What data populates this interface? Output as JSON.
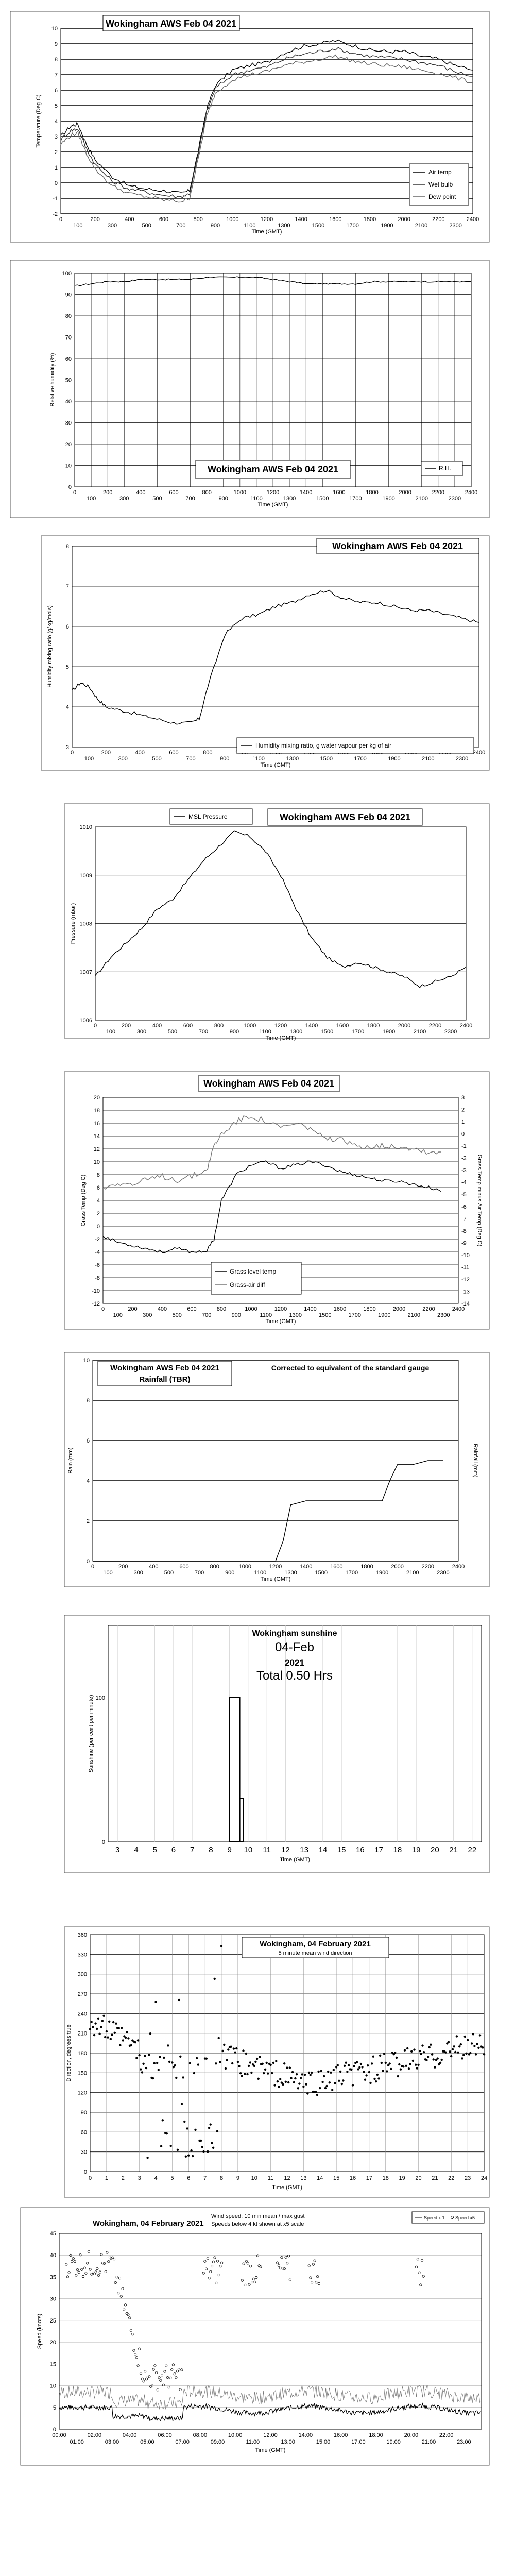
{
  "charts": {
    "temperature": {
      "title": "Wokingham AWS Feb 04 2021",
      "xlabel": "Time (GMT)",
      "ylabel": "Temperature (Deg C)",
      "legend": [
        "Air temp",
        "Wet bulb",
        "Dew point"
      ]
    },
    "humidity": {
      "title": "Wokingham AWS Feb 04 2021",
      "xlabel": "Time (GMT)",
      "ylabel": "Relative humidity (%)",
      "legend": [
        "R.H."
      ]
    },
    "mixing": {
      "title": "Wokingham AWS Feb 04 2021",
      "xlabel": "Time (GMT)",
      "ylabel": "Humidity mixing ratio (g/kg/mols)",
      "legend": [
        "Humidity mixing ratio, g water vapour per kg of air"
      ]
    },
    "pressure": {
      "title": "Wokingham AWS Feb 04 2021",
      "xlabel": "Time (GMT)",
      "ylabel": "Pressure (mbar)",
      "legend": [
        "MSL Pressure"
      ]
    },
    "grass": {
      "title": "Wokingham AWS Feb 04 2021",
      "xlabel": "Time (GMT)",
      "ylabel": "Grass Temp (Deg C)",
      "ylabel2": "Grass Temp minus Air Temp (Deg C)",
      "legend": [
        "Grass level temp",
        "Grass-air diff"
      ]
    },
    "rain": {
      "title": "Wokingham AWS Feb 04 2021",
      "subtitle": "Rainfall (TBR)",
      "note": "Corrected to equivalent of the standard gauge",
      "xlabel": "Time (GMT)",
      "ylabel": "Rain (mm)",
      "ylabel2": "Rainfall (mm)"
    },
    "sunshine": {
      "title": "Wokingham sunshine",
      "date": "04-Feb",
      "year": "2021",
      "total": "Total 0.50 Hrs",
      "xlabel": "Time (GMT)",
      "ylabel": "Sunshine (per cent per minute)"
    },
    "wind_dir": {
      "title": "Wokingham,  04 February 2021",
      "subtitle": "5 minute mean wind direction",
      "xlabel": "Time (GMT)",
      "ylabel": "Direction, degrees true"
    },
    "wind_speed": {
      "title": "Wokingham,  04 February 2021",
      "subtitle1": "Wind speed: 10 min mean / max gust",
      "subtitle2": "Speeds below 4 kt shown at x5 scale",
      "xlabel": "Time (GMT)",
      "ylabel": "Speed (knots)",
      "legend": [
        "Speed x 1",
        "Speed x5"
      ]
    }
  },
  "chart_data": [
    {
      "id": "temperature",
      "type": "line",
      "title": "Wokingham AWS Feb 04 2021",
      "xlabel": "Time (GMT)",
      "ylabel": "Temperature (Deg C)",
      "xlim": [
        0,
        2400
      ],
      "ylim": [
        -2,
        10
      ],
      "series": [
        {
          "name": "Air temp",
          "color": "#000000",
          "x": [
            0,
            60,
            100,
            150,
            200,
            300,
            400,
            500,
            600,
            700,
            750,
            800,
            850,
            900,
            1000,
            1100,
            1200,
            1300,
            1400,
            1500,
            1600,
            1700,
            1800,
            1900,
            2000,
            2100,
            2200,
            2300,
            2400
          ],
          "y": [
            3.0,
            3.7,
            3.8,
            2.5,
            1.5,
            0.4,
            -0.2,
            -0.4,
            -0.5,
            -0.7,
            -0.5,
            2.0,
            4.8,
            6.3,
            7.3,
            7.6,
            7.8,
            8.4,
            8.8,
            9.0,
            9.2,
            8.9,
            8.6,
            8.5,
            8.5,
            8.2,
            8.0,
            7.6,
            7.3
          ]
        },
        {
          "name": "Wet bulb",
          "color": "#333333",
          "x": [
            0,
            60,
            100,
            150,
            200,
            300,
            400,
            500,
            600,
            700,
            750,
            800,
            850,
            900,
            1000,
            1100,
            1200,
            1300,
            1400,
            1500,
            1600,
            1700,
            1800,
            1900,
            2000,
            2100,
            2200,
            2300,
            2400
          ],
          "y": [
            2.8,
            3.4,
            3.5,
            2.2,
            1.2,
            0.1,
            -0.4,
            -0.6,
            -0.8,
            -0.9,
            -0.7,
            1.8,
            4.6,
            6.1,
            7.0,
            7.3,
            7.5,
            8.0,
            8.3,
            8.5,
            8.7,
            8.4,
            8.2,
            8.1,
            8.0,
            7.8,
            7.6,
            7.2,
            6.9
          ]
        },
        {
          "name": "Dew point",
          "color": "#666666",
          "x": [
            0,
            60,
            100,
            150,
            200,
            300,
            400,
            500,
            600,
            700,
            750,
            800,
            850,
            900,
            1000,
            1100,
            1200,
            1300,
            1400,
            1500,
            1600,
            1700,
            1800,
            1900,
            2000,
            2100,
            2200,
            2300,
            2400
          ],
          "y": [
            2.5,
            3.1,
            3.2,
            1.9,
            0.9,
            -0.2,
            -0.7,
            -0.9,
            -1.1,
            -1.2,
            -1.0,
            1.5,
            4.3,
            5.8,
            6.7,
            7.0,
            7.2,
            7.6,
            7.8,
            8.0,
            8.2,
            7.9,
            7.7,
            7.6,
            7.5,
            7.3,
            7.1,
            6.8,
            6.5
          ]
        }
      ]
    },
    {
      "id": "humidity",
      "type": "line",
      "title": "Wokingham AWS Feb 04 2021",
      "xlabel": "Time (GMT)",
      "ylabel": "Relative humidity (%)",
      "xlim": [
        0,
        2400
      ],
      "ylim": [
        0,
        100
      ],
      "series": [
        {
          "name": "R.H.",
          "color": "#000000",
          "x": [
            0,
            100,
            200,
            300,
            400,
            500,
            600,
            700,
            800,
            900,
            1000,
            1100,
            1200,
            1300,
            1400,
            1500,
            1600,
            1700,
            1800,
            1900,
            2000,
            2100,
            2200,
            2300,
            2400
          ],
          "y": [
            94,
            95,
            96,
            96,
            97,
            97,
            97,
            97,
            98,
            98,
            98,
            98,
            97,
            96,
            95,
            95,
            95,
            95,
            96,
            96,
            96,
            96,
            96,
            96,
            96
          ]
        }
      ]
    },
    {
      "id": "mixing",
      "type": "line",
      "title": "Wokingham AWS Feb 04 2021",
      "xlabel": "Time (GMT)",
      "ylabel": "Humidity mixing ratio (g/kg/mols)",
      "xlim": [
        0,
        2400
      ],
      "ylim": [
        3,
        8
      ],
      "series": [
        {
          "name": "Humidity mixing ratio, g water vapour per kg of air",
          "color": "#000000",
          "x": [
            0,
            50,
            100,
            150,
            200,
            300,
            400,
            500,
            600,
            700,
            750,
            800,
            900,
            1000,
            1100,
            1200,
            1300,
            1400,
            1500,
            1600,
            1700,
            1800,
            1900,
            2000,
            2100,
            2200,
            2300,
            2400
          ],
          "y": [
            4.4,
            4.6,
            4.5,
            4.2,
            4.0,
            3.9,
            3.8,
            3.7,
            3.6,
            3.6,
            3.7,
            4.5,
            5.8,
            6.2,
            6.3,
            6.5,
            6.6,
            6.8,
            6.9,
            6.7,
            6.6,
            6.6,
            6.5,
            6.4,
            6.4,
            6.3,
            6.2,
            6.1
          ]
        }
      ]
    },
    {
      "id": "pressure",
      "type": "line",
      "title": "Wokingham AWS Feb 04 2021",
      "xlabel": "Time (GMT)",
      "ylabel": "Pressure (mbar)",
      "xlim": [
        0,
        2400
      ],
      "ylim": [
        1006,
        1010
      ],
      "series": [
        {
          "name": "MSL Pressure",
          "color": "#000000",
          "x": [
            0,
            100,
            200,
            300,
            400,
            500,
            600,
            700,
            800,
            900,
            1000,
            1100,
            1200,
            1300,
            1400,
            1500,
            1600,
            1700,
            1800,
            1900,
            2000,
            2100,
            2200,
            2300,
            2400
          ],
          "y": [
            1006.9,
            1007.3,
            1007.6,
            1007.9,
            1008.3,
            1008.5,
            1008.9,
            1009.3,
            1009.6,
            1009.9,
            1009.8,
            1009.5,
            1009.0,
            1008.3,
            1007.7,
            1007.3,
            1007.1,
            1007.2,
            1007.1,
            1007.0,
            1006.9,
            1006.7,
            1006.8,
            1006.9,
            1007.1
          ]
        }
      ]
    },
    {
      "id": "grass",
      "type": "line",
      "title": "Wokingham AWS Feb 04 2021",
      "xlabel": "Time (GMT)",
      "ylabel": "Grass Temp (Deg C)",
      "xlim": [
        0,
        2400
      ],
      "ylim": [
        -12,
        20
      ],
      "ylim2": [
        -14,
        3
      ],
      "series": [
        {
          "name": "Grass level temp",
          "color": "#000000",
          "axis": "left",
          "x": [
            0,
            100,
            200,
            300,
            400,
            500,
            600,
            700,
            750,
            800,
            900,
            1000,
            1100,
            1200,
            1300,
            1400,
            1500,
            1600,
            1700,
            1800,
            1900,
            2000,
            2100,
            2200,
            2300
          ],
          "y": [
            -1.5,
            -2.5,
            -3.0,
            -3.5,
            -4.0,
            -3.5,
            -4.0,
            -3.8,
            -2.0,
            4.0,
            8.0,
            9.5,
            10.0,
            9.0,
            9.5,
            10.0,
            9.5,
            8.5,
            8.0,
            7.5,
            7.0,
            7.0,
            6.5,
            6.0,
            5.5
          ]
        },
        {
          "name": "Grass-air diff",
          "color": "#777777",
          "axis": "right",
          "x": [
            0,
            100,
            200,
            300,
            400,
            500,
            600,
            700,
            750,
            800,
            900,
            1000,
            1100,
            1200,
            1300,
            1400,
            1500,
            1600,
            1700,
            1800,
            1900,
            2000,
            2100,
            2200,
            2300
          ],
          "y": [
            -4.5,
            -4.0,
            -4.2,
            -3.8,
            -3.5,
            -3.8,
            -3.5,
            -3.0,
            -1.0,
            0.0,
            1.0,
            1.5,
            1.0,
            0.5,
            0.8,
            0.5,
            -0.5,
            -0.5,
            -1.0,
            -1.0,
            -1.0,
            -1.0,
            -1.2,
            -1.5,
            -1.5
          ]
        }
      ]
    },
    {
      "id": "rain",
      "type": "line",
      "title": "Wokingham AWS Feb 04 2021",
      "xlabel": "Time (GMT)",
      "ylabel": "Rain (mm)",
      "xlim": [
        0,
        2400
      ],
      "ylim": [
        0,
        10
      ],
      "series": [
        {
          "name": "Rainfall (TBR)",
          "color": "#000000",
          "x": [
            0,
            1200,
            1250,
            1300,
            1350,
            1400,
            1500,
            1600,
            1700,
            1800,
            1900,
            1950,
            2000,
            2100,
            2200,
            2300
          ],
          "y": [
            0,
            0,
            1.0,
            2.8,
            2.9,
            3.0,
            3.0,
            3.0,
            3.0,
            3.0,
            3.0,
            4.0,
            4.8,
            4.8,
            5.0,
            5.0
          ]
        }
      ]
    },
    {
      "id": "sunshine",
      "type": "bar",
      "title": "Wokingham sunshine",
      "xlabel": "Time (GMT)",
      "ylabel": "Sunshine (per cent per minute)",
      "categories": [
        "3",
        "4",
        "5",
        "6",
        "7",
        "8",
        "9",
        "10",
        "11",
        "12",
        "13",
        "14",
        "15",
        "16",
        "17",
        "18",
        "19",
        "20",
        "21",
        "22"
      ],
      "ylim": [
        0,
        150
      ],
      "bars": [
        {
          "x": [
            9.0,
            9.55
          ],
          "y": 100
        },
        {
          "x": [
            9.55,
            9.75
          ],
          "y": 30
        }
      ]
    },
    {
      "id": "wind_dir",
      "type": "scatter",
      "title": "Wokingham,  04 February 2021",
      "xlabel": "Time (GMT)",
      "ylabel": "Direction, degrees true",
      "xlim": [
        0,
        24
      ],
      "ylim": [
        0,
        360
      ]
    },
    {
      "id": "wind_speed",
      "type": "line",
      "title": "Wokingham,  04 February 2021",
      "xlabel": "Time (GMT)",
      "ylabel": "Speed (knots)",
      "xlim": [
        0,
        24
      ],
      "ylim": [
        0,
        45
      ]
    }
  ]
}
